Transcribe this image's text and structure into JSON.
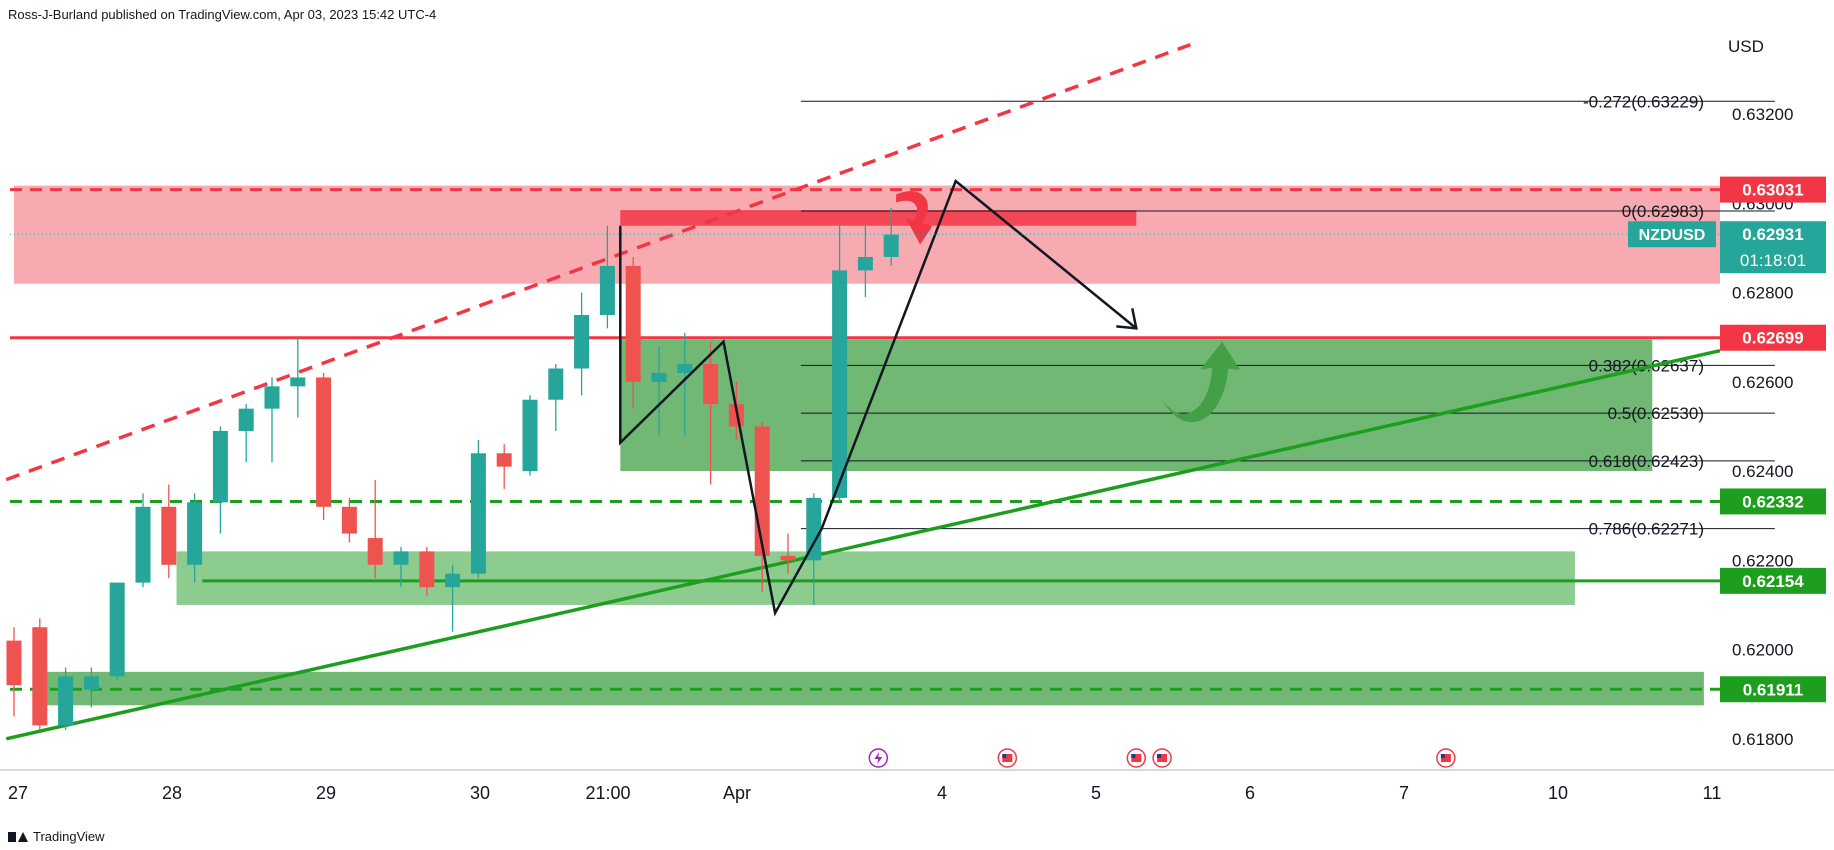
{
  "header": {
    "published": "Ross-J-Burland published on TradingView.com, Apr 03, 2023 15:42 UTC-4"
  },
  "footer": {
    "brand": "TradingView"
  },
  "colors": {
    "up": "#26a69a",
    "down": "#ef5350",
    "red_line": "#f23645",
    "red_zone": "#f7a1a8",
    "green_zone": "#43a047",
    "green_line": "#1e9e1e",
    "black": "#131722"
  },
  "chart_data": {
    "type": "candlestick",
    "symbol": "NZDUSD",
    "currency": "USD",
    "last_price_label": "0.62931",
    "countdown": "01:18:01",
    "ylim": [
      0.6173,
      0.634
    ],
    "y_ticks": [
      "0.63200",
      "0.63000",
      "0.62800",
      "0.62600",
      "0.62400",
      "0.62200",
      "0.62000",
      "0.61800"
    ],
    "x_labels": [
      "27",
      "28",
      "29",
      "30",
      "21:00",
      "Apr",
      "4",
      "5",
      "6",
      "7",
      "10",
      "11"
    ],
    "candles": [
      {
        "o": 0.6202,
        "h": 0.6205,
        "l": 0.6185,
        "c": 0.6192
      },
      {
        "o": 0.6205,
        "h": 0.6207,
        "l": 0.6182,
        "c": 0.6183
      },
      {
        "o": 0.6183,
        "h": 0.6196,
        "l": 0.6182,
        "c": 0.6194
      },
      {
        "o": 0.6191,
        "h": 0.6196,
        "l": 0.6187,
        "c": 0.6194
      },
      {
        "o": 0.6194,
        "h": 0.6215,
        "l": 0.6193,
        "c": 0.6215
      },
      {
        "o": 0.6215,
        "h": 0.6235,
        "l": 0.6214,
        "c": 0.6232
      },
      {
        "o": 0.6232,
        "h": 0.6237,
        "l": 0.6216,
        "c": 0.6219
      },
      {
        "o": 0.6219,
        "h": 0.6235,
        "l": 0.6215,
        "c": 0.6233
      },
      {
        "o": 0.6233,
        "h": 0.625,
        "l": 0.6226,
        "c": 0.6249
      },
      {
        "o": 0.6249,
        "h": 0.6255,
        "l": 0.6242,
        "c": 0.6254
      },
      {
        "o": 0.6254,
        "h": 0.6261,
        "l": 0.6242,
        "c": 0.6259
      },
      {
        "o": 0.6259,
        "h": 0.627,
        "l": 0.6252,
        "c": 0.6261
      },
      {
        "o": 0.6261,
        "h": 0.6262,
        "l": 0.6229,
        "c": 0.6232
      },
      {
        "o": 0.6232,
        "h": 0.6234,
        "l": 0.6224,
        "c": 0.6226
      },
      {
        "o": 0.6225,
        "h": 0.6238,
        "l": 0.6216,
        "c": 0.6219
      },
      {
        "o": 0.6219,
        "h": 0.6223,
        "l": 0.6214,
        "c": 0.6222
      },
      {
        "o": 0.6222,
        "h": 0.6223,
        "l": 0.6212,
        "c": 0.6214
      },
      {
        "o": 0.6214,
        "h": 0.6219,
        "l": 0.6204,
        "c": 0.6217
      },
      {
        "o": 0.6217,
        "h": 0.6247,
        "l": 0.6216,
        "c": 0.6244
      },
      {
        "o": 0.6244,
        "h": 0.6246,
        "l": 0.6236,
        "c": 0.6241
      },
      {
        "o": 0.624,
        "h": 0.6257,
        "l": 0.6239,
        "c": 0.6256
      },
      {
        "o": 0.6256,
        "h": 0.6264,
        "l": 0.6249,
        "c": 0.6263
      },
      {
        "o": 0.6263,
        "h": 0.628,
        "l": 0.6257,
        "c": 0.6275
      },
      {
        "o": 0.6275,
        "h": 0.6295,
        "l": 0.6272,
        "c": 0.6286
      },
      {
        "o": 0.6286,
        "h": 0.6288,
        "l": 0.6254,
        "c": 0.626
      },
      {
        "o": 0.626,
        "h": 0.6268,
        "l": 0.6248,
        "c": 0.6262
      },
      {
        "o": 0.6262,
        "h": 0.6271,
        "l": 0.6248,
        "c": 0.6264
      },
      {
        "o": 0.6264,
        "h": 0.6269,
        "l": 0.6237,
        "c": 0.6255
      },
      {
        "o": 0.6255,
        "h": 0.626,
        "l": 0.6247,
        "c": 0.625
      },
      {
        "o": 0.625,
        "h": 0.6251,
        "l": 0.6213,
        "c": 0.6221
      },
      {
        "o": 0.6221,
        "h": 0.6226,
        "l": 0.6217,
        "c": 0.622
      },
      {
        "o": 0.622,
        "h": 0.6235,
        "l": 0.621,
        "c": 0.6234
      },
      {
        "o": 0.6234,
        "h": 0.6295,
        "l": 0.6233,
        "c": 0.6285
      },
      {
        "o": 0.6285,
        "h": 0.6295,
        "l": 0.6279,
        "c": 0.6288
      },
      {
        "o": 0.6288,
        "h": 0.6299,
        "l": 0.6286,
        "c": 0.6293
      }
    ],
    "zones": [
      {
        "name": "red-resistance-zone",
        "y1": 0.6282,
        "y2": 0.6304,
        "x1": 0,
        "x2": 71,
        "color": "#f7a1a8"
      },
      {
        "name": "red-supply-block",
        "y1": 0.6295,
        "y2": 0.62985,
        "x1": 23.5,
        "x2": 43.5,
        "color": "#f23645"
      },
      {
        "name": "green-upper-zone",
        "y1": 0.624,
        "y2": 0.62695,
        "x1": 23.5,
        "x2": 63.5,
        "color": "#43a047"
      },
      {
        "name": "green-middle-zone",
        "y1": 0.621,
        "y2": 0.6222,
        "x1": 6.3,
        "x2": 60.5,
        "color": "#66bb6a"
      },
      {
        "name": "green-lower-zone",
        "y1": 0.61875,
        "y2": 0.6195,
        "x1": 1,
        "x2": 65.5,
        "color": "#43a047"
      }
    ],
    "levels": [
      {
        "name": "level-0-63031",
        "y": 0.63031,
        "style": "dashed",
        "color": "#f23645",
        "label": "0.63031"
      },
      {
        "name": "level-0-62699",
        "y": 0.62699,
        "style": "solid",
        "color": "#f23645",
        "label": "0.62699"
      },
      {
        "name": "level-0-62332",
        "y": 0.62332,
        "style": "dashed",
        "color": "#1e9e1e",
        "label": "0.62332"
      },
      {
        "name": "level-0-62154",
        "y": 0.62154,
        "style": "solid",
        "color": "#1e9e1e",
        "label": "0.62154",
        "x1": 7.3,
        "x2": 71
      },
      {
        "name": "level-0-61911",
        "y": 0.61911,
        "style": "dashed",
        "color": "#1e9e1e",
        "label": "0.61911"
      }
    ],
    "fibonacci": [
      {
        "ratio": "-0.272",
        "value": "0.63229",
        "y": 0.63229
      },
      {
        "ratio": "0",
        "value": "0.62983",
        "y": 0.62983
      },
      {
        "ratio": "0.382",
        "value": "0.62637",
        "y": 0.62637
      },
      {
        "ratio": "0.5",
        "value": "0.62530",
        "y": 0.6253
      },
      {
        "ratio": "0.618",
        "value": "0.62423",
        "y": 0.62423
      },
      {
        "ratio": "0.786",
        "value": "0.62271",
        "y": 0.62271
      }
    ],
    "fib_x_start": 30.5,
    "fib_x_end": 60.5,
    "trendlines": [
      {
        "name": "dashed-red-trendline",
        "x1": -0.3,
        "y1": 0.62381,
        "x2": 45.6,
        "y2": 0.63356,
        "style": "dashed",
        "color": "#f23645"
      },
      {
        "name": "green-trendline",
        "x1": -0.3,
        "y1": 0.618,
        "x2": 67,
        "y2": 0.6267,
        "style": "solid",
        "color": "#1e9e1e"
      }
    ],
    "path_black": [
      [
        23.5,
        0.62464
      ],
      [
        23.5,
        0.6295
      ],
      [
        23.5,
        0.62464
      ],
      [
        27.5,
        0.6269
      ],
      [
        29.5,
        0.62082
      ],
      [
        31.3,
        0.6227
      ],
      [
        36.5,
        0.6305
      ],
      [
        43.5,
        0.6272
      ]
    ],
    "event_markers": [
      {
        "x": 33.5,
        "type": "lightning"
      },
      {
        "x": 38.5,
        "type": "flag"
      },
      {
        "x": 43.5,
        "type": "flag"
      },
      {
        "x": 44.5,
        "type": "flag"
      },
      {
        "x": 55.5,
        "type": "flag"
      }
    ]
  }
}
